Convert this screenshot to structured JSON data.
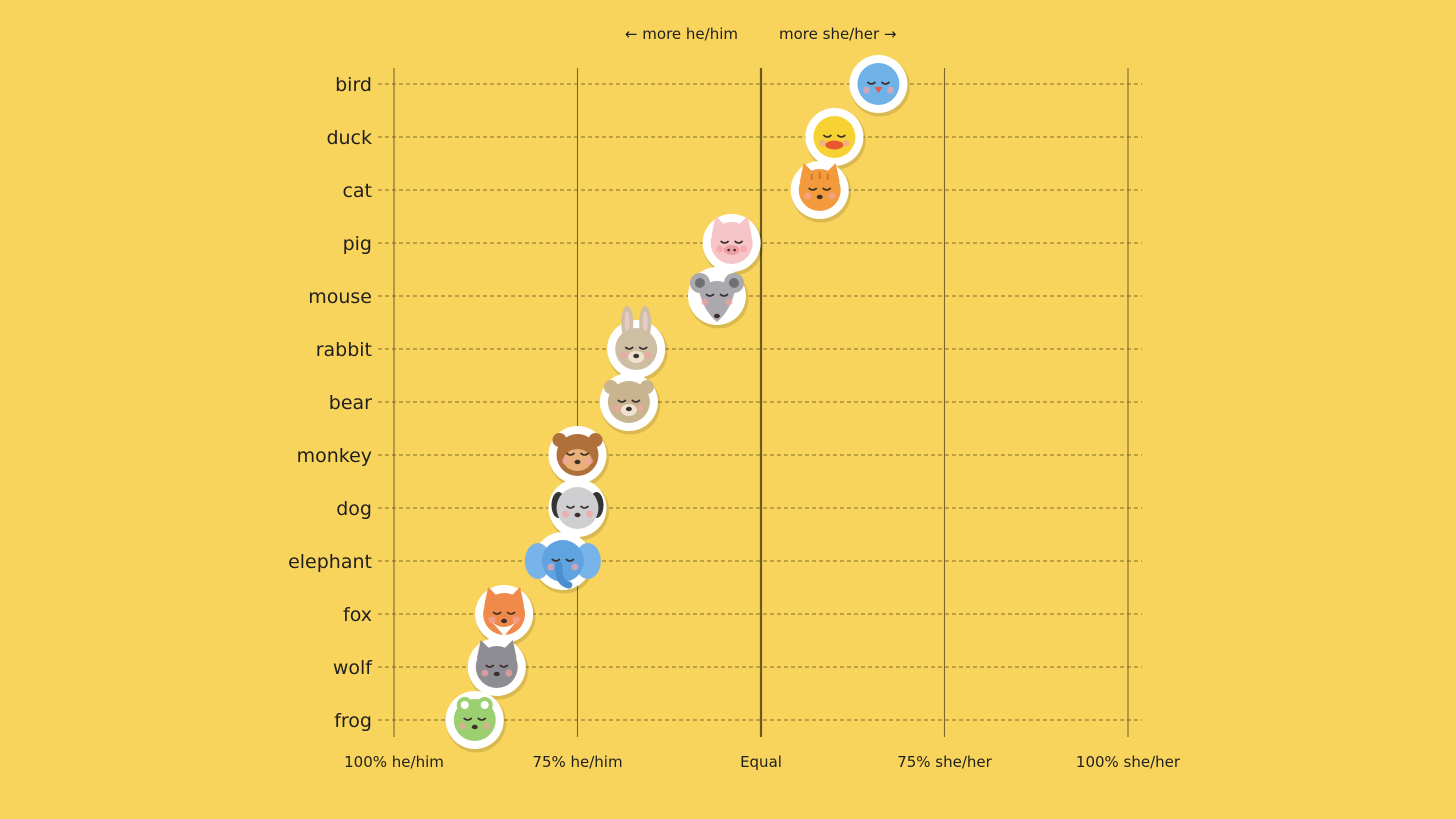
{
  "chart_data": {
    "type": "scatter",
    "title": "",
    "xlabel": "",
    "ylabel": "",
    "direction_labels": {
      "left": "← more he/him",
      "right": "more she/her →"
    },
    "x_scale": "fraction she/her (0 = 100% he/him, 0.5 = equal, 1 = 100% she/her)",
    "xlim": [
      0.0,
      1.0
    ],
    "x_ticks": [
      {
        "value": 0.0,
        "label": "100% he/him"
      },
      {
        "value": 0.25,
        "label": "75% he/him"
      },
      {
        "value": 0.5,
        "label": "Equal"
      },
      {
        "value": 0.75,
        "label": "75% she/her"
      },
      {
        "value": 1.0,
        "label": "100% she/her"
      }
    ],
    "grid": true,
    "categories": [
      "bird",
      "duck",
      "cat",
      "pig",
      "mouse",
      "rabbit",
      "bear",
      "monkey",
      "dog",
      "elephant",
      "fox",
      "wolf",
      "frog"
    ],
    "points": [
      {
        "animal": "bird",
        "x": 0.66,
        "face": "#6FB2E8",
        "icon": "bird-icon"
      },
      {
        "animal": "duck",
        "x": 0.6,
        "face": "#F6D233",
        "icon": "duck-icon"
      },
      {
        "animal": "cat",
        "x": 0.58,
        "face": "#F39A3C",
        "icon": "cat-icon"
      },
      {
        "animal": "pig",
        "x": 0.46,
        "face": "#F6C5C8",
        "icon": "pig-icon"
      },
      {
        "animal": "mouse",
        "x": 0.44,
        "face": "#A9A9AE",
        "icon": "mouse-icon"
      },
      {
        "animal": "rabbit",
        "x": 0.33,
        "face": "#CDBEA4",
        "icon": "rabbit-icon"
      },
      {
        "animal": "bear",
        "x": 0.32,
        "face": "#C8B48E",
        "icon": "bear-icon"
      },
      {
        "animal": "monkey",
        "x": 0.25,
        "face": "#B0703A",
        "icon": "monkey-icon"
      },
      {
        "animal": "dog",
        "x": 0.25,
        "face": "#CFCFD2",
        "icon": "dog-icon"
      },
      {
        "animal": "elephant",
        "x": 0.23,
        "face": "#5FA4E0",
        "icon": "elephant-icon"
      },
      {
        "animal": "fox",
        "x": 0.15,
        "face": "#F08A4B",
        "icon": "fox-icon"
      },
      {
        "animal": "wolf",
        "x": 0.14,
        "face": "#8D8D93",
        "icon": "wolf-icon"
      },
      {
        "animal": "frog",
        "x": 0.11,
        "face": "#9BCF70",
        "icon": "frog-icon"
      }
    ]
  }
}
